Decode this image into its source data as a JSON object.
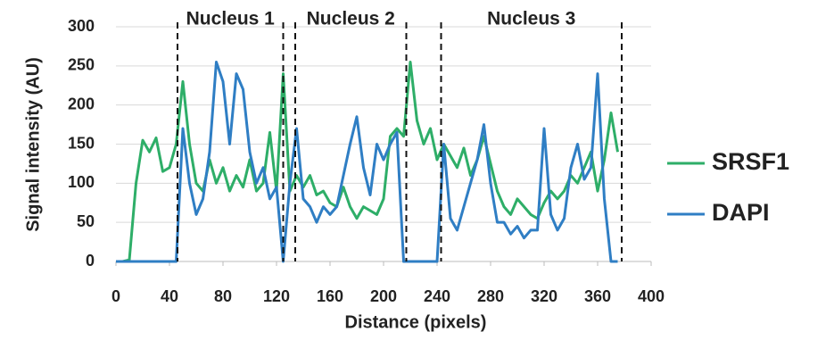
{
  "chart_data": {
    "type": "line",
    "xlabel": "Distance (pixels)",
    "ylabel": "Signal intensity (AU)",
    "x": [
      0,
      5,
      10,
      15,
      20,
      25,
      30,
      35,
      40,
      45,
      50,
      55,
      60,
      65,
      70,
      75,
      80,
      85,
      90,
      95,
      100,
      105,
      110,
      115,
      120,
      125,
      130,
      135,
      140,
      145,
      150,
      155,
      160,
      165,
      170,
      175,
      180,
      185,
      190,
      195,
      200,
      205,
      210,
      215,
      220,
      225,
      230,
      235,
      240,
      245,
      250,
      255,
      260,
      265,
      270,
      275,
      280,
      285,
      290,
      295,
      300,
      305,
      310,
      315,
      320,
      325,
      330,
      335,
      340,
      345,
      350,
      355,
      360,
      365,
      370,
      375
    ],
    "series": [
      {
        "name": "SRSF1",
        "color": "#2eae68",
        "values": [
          0,
          0,
          2,
          100,
          155,
          140,
          158,
          115,
          120,
          150,
          230,
          150,
          100,
          90,
          130,
          100,
          120,
          90,
          110,
          95,
          130,
          90,
          100,
          165,
          90,
          240,
          90,
          110,
          95,
          110,
          85,
          90,
          75,
          70,
          95,
          70,
          55,
          70,
          65,
          60,
          80,
          160,
          170,
          160,
          255,
          180,
          150,
          170,
          130,
          150,
          135,
          120,
          145,
          110,
          130,
          160,
          125,
          90,
          70,
          60,
          80,
          70,
          60,
          55,
          75,
          90,
          80,
          90,
          110,
          100,
          120,
          140,
          90,
          130,
          190,
          140
        ]
      },
      {
        "name": "DAPI",
        "color": "#2f7ec4",
        "values": [
          0,
          0,
          0,
          0,
          0,
          0,
          0,
          0,
          0,
          0,
          170,
          100,
          60,
          80,
          140,
          255,
          230,
          150,
          240,
          220,
          140,
          100,
          120,
          80,
          95,
          0,
          100,
          170,
          80,
          70,
          50,
          70,
          60,
          70,
          110,
          150,
          185,
          120,
          85,
          150,
          130,
          150,
          165,
          0,
          0,
          0,
          0,
          0,
          0,
          150,
          55,
          40,
          70,
          100,
          130,
          175,
          100,
          50,
          50,
          35,
          45,
          30,
          40,
          40,
          170,
          60,
          40,
          55,
          120,
          150,
          105,
          120,
          240,
          80,
          0,
          0
        ]
      }
    ],
    "annotations": [
      "Nucleus 1",
      "Nucleus 2",
      "Nucleus 3"
    ],
    "vlines": [
      46,
      125,
      134,
      217,
      243,
      378
    ],
    "xlim": [
      0,
      400
    ],
    "xticks": [
      0,
      40,
      80,
      120,
      160,
      200,
      240,
      280,
      320,
      360,
      400
    ],
    "ylim": [
      0,
      300
    ],
    "yticks": [
      0,
      50,
      100,
      150,
      200,
      250,
      300
    ],
    "grid": true,
    "legend": "right"
  }
}
